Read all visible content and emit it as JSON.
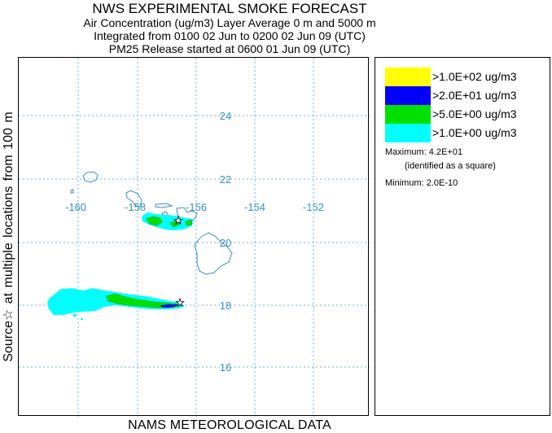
{
  "header": {
    "title": "NWS EXPERIMENTAL SMOKE FORECAST",
    "line1": "Air Concentration (ug/m3) Layer Average    0 m and  5000 m",
    "line2": "Integrated from 0100 02 Jun to 0200 02 Jun 09 (UTC)",
    "line3": "PM25 Release started at 0600 01 Jun 09 (UTC)"
  },
  "side_label": "Source☆ at multiple locations  from  100 m",
  "footer": "NAMS METEOROLOGICAL DATA",
  "map": {
    "lon_ticks": [
      "-160",
      "-158",
      "-156",
      "-154",
      "-152"
    ],
    "lat_ticks": [
      "24",
      "22",
      "20",
      "18",
      "16"
    ],
    "grid_color": "#6fb2d8",
    "coast_color": "#3a8fc0",
    "source_symbol": "star-icon"
  },
  "legend": {
    "items": [
      {
        "label": ">1.0E+02 ug/m3",
        "color": "#ffff00"
      },
      {
        "label": ">2.0E+01 ug/m3",
        "color": "#0000ff"
      },
      {
        "label": ">5.0E+00 ug/m3",
        "color": "#00e000"
      },
      {
        "label": ">1.0E+00 ug/m3",
        "color": "#00ffff"
      }
    ],
    "maximum_label": "Maximum:",
    "maximum_value": "4.2E+01",
    "maximum_note": "(identified as a square)",
    "minimum_label": "Minimum:",
    "minimum_value": "2.0E-10"
  }
}
